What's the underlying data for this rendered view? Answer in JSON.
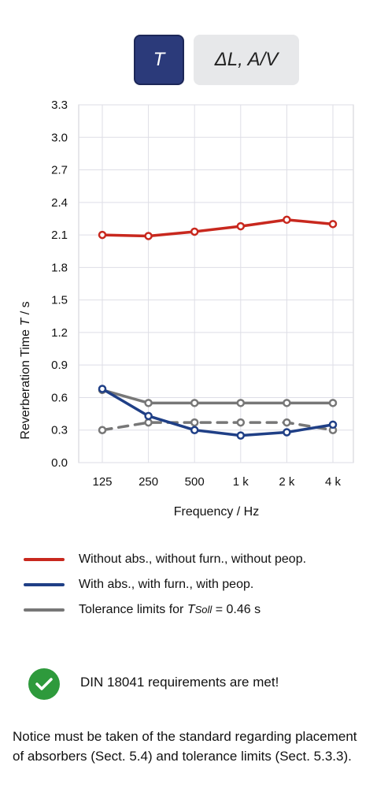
{
  "buttons": {
    "t_label": "T",
    "dl_label": "ΔL, A/V"
  },
  "chart_data": {
    "type": "line",
    "categories": [
      "125",
      "250",
      "500",
      "1 k",
      "2 k",
      "4 k"
    ],
    "xlabel": "Frequency / Hz",
    "ylabel_prefix": "Reverberation  Time ",
    "ylabel_var": "T",
    "ylabel_suffix": " / s",
    "ylim": [
      0,
      3.3
    ],
    "yticks": [
      "0.0",
      "0.3",
      "0.6",
      "0.9",
      "1.2",
      "1.5",
      "1.8",
      "2.1",
      "2.4",
      "2.7",
      "3.0",
      "3.3"
    ],
    "grid": true,
    "series": [
      {
        "name": "Without abs., without furn., without peop.",
        "color": "#c8281e",
        "values": [
          2.1,
          2.09,
          2.13,
          2.18,
          2.24,
          2.2
        ]
      },
      {
        "name": "With abs., with furn., with peop.",
        "color": "#1f3f86",
        "values": [
          0.68,
          0.43,
          0.3,
          0.25,
          0.28,
          0.35
        ]
      },
      {
        "name": "Tolerance limits for TSoll = 0.46 s",
        "color": "#777777",
        "kind": "upper",
        "values": [
          0.67,
          0.55,
          0.55,
          0.55,
          0.55,
          0.55
        ]
      },
      {
        "name": "",
        "color": "#777777",
        "kind": "lower",
        "dashed": true,
        "values": [
          0.3,
          0.37,
          0.37,
          0.37,
          0.37,
          0.3
        ]
      }
    ]
  },
  "legend": {
    "item1": "Without abs., without furn., without peop.",
    "item2": "With abs., with furn., with peop.",
    "item3_prefix": "Tolerance  limits for ",
    "item3_var": "T",
    "item3_sub": "Soll",
    "item3_suffix": " = 0.46 s"
  },
  "status": {
    "text": "DIN 18041 requirements are met!",
    "color": "#2e9a3c"
  },
  "notice": "Notice must be taken of the standard regarding placement of absorbers (Sect. 5.4) and tolerance limits (Sect. 5.3.3)."
}
